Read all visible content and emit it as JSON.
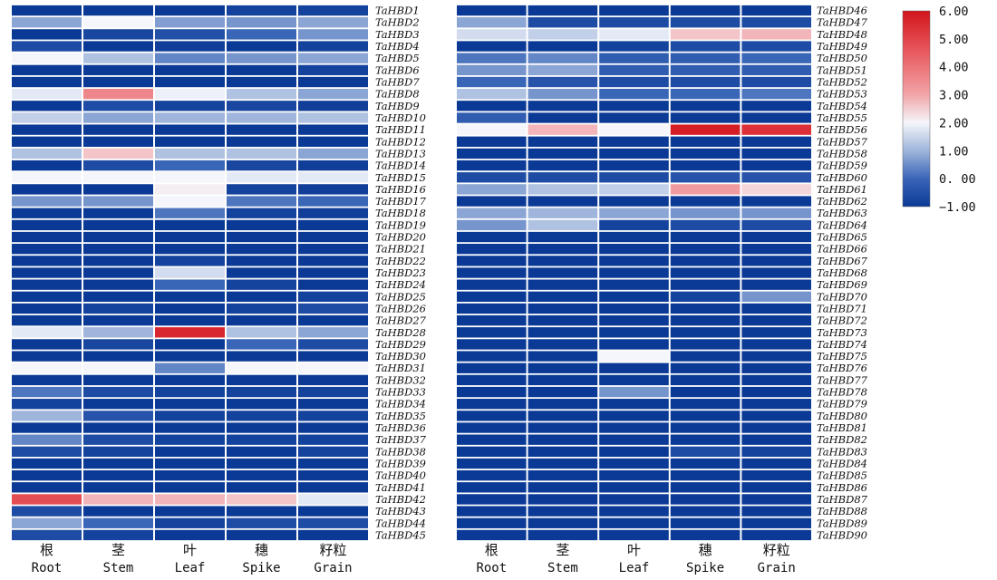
{
  "chart_data": {
    "type": "heatmap",
    "title": "",
    "columns": [
      {
        "cn": "根",
        "en": "Root"
      },
      {
        "cn": "茎",
        "en": "Stem"
      },
      {
        "cn": "叶",
        "en": "Leaf"
      },
      {
        "cn": "穗",
        "en": "Spike"
      },
      {
        "cn": "籽粒",
        "en": "Grain"
      }
    ],
    "panels": [
      {
        "rows": [
          {
            "gene": "TaHBD1",
            "values": [
              -1.0,
              -1.0,
              -1.0,
              -0.8,
              -0.8
            ]
          },
          {
            "gene": "TaHBD2",
            "values": [
              0.8,
              2.0,
              0.7,
              0.6,
              0.8
            ]
          },
          {
            "gene": "TaHBD3",
            "values": [
              -1.0,
              -0.7,
              -0.5,
              0.0,
              0.6
            ]
          },
          {
            "gene": "TaHBD4",
            "values": [
              -0.6,
              -1.0,
              -0.9,
              -1.0,
              -0.8
            ]
          },
          {
            "gene": "TaHBD5",
            "values": [
              2.0,
              1.2,
              0.4,
              0.6,
              0.8
            ]
          },
          {
            "gene": "TaHBD6",
            "values": [
              -1.0,
              -1.0,
              -1.0,
              -1.0,
              -0.8
            ]
          },
          {
            "gene": "TaHBD7",
            "values": [
              -1.0,
              -1.0,
              -1.0,
              -1.0,
              -1.0
            ]
          },
          {
            "gene": "TaHBD8",
            "values": [
              1.8,
              3.6,
              1.9,
              1.2,
              0.8
            ]
          },
          {
            "gene": "TaHBD9",
            "values": [
              -1.0,
              -0.6,
              -0.8,
              -0.7,
              -0.9
            ]
          },
          {
            "gene": "TaHBD10",
            "values": [
              1.4,
              0.8,
              1.0,
              1.0,
              1.2
            ]
          },
          {
            "gene": "TaHBD11",
            "values": [
              -1.0,
              -1.0,
              -1.0,
              -1.0,
              -1.0
            ]
          },
          {
            "gene": "TaHBD12",
            "values": [
              -1.0,
              -1.0,
              -1.0,
              -1.0,
              -1.0
            ]
          },
          {
            "gene": "TaHBD13",
            "values": [
              1.2,
              2.6,
              1.2,
              1.2,
              0.8
            ]
          },
          {
            "gene": "TaHBD14",
            "values": [
              -1.0,
              -0.6,
              0.0,
              -0.7,
              -0.9
            ]
          },
          {
            "gene": "TaHBD15",
            "values": [
              2.0,
              2.0,
              2.0,
              1.8,
              1.8
            ]
          },
          {
            "gene": "TaHBD16",
            "values": [
              -1.0,
              -1.0,
              2.1,
              -0.8,
              -0.9
            ]
          },
          {
            "gene": "TaHBD17",
            "values": [
              0.6,
              0.6,
              2.0,
              0.2,
              0.0
            ]
          },
          {
            "gene": "TaHBD18",
            "values": [
              -1.0,
              -1.0,
              0.2,
              -0.8,
              -0.9
            ]
          },
          {
            "gene": "TaHBD19",
            "values": [
              -1.0,
              -1.0,
              -1.0,
              -1.0,
              -1.0
            ]
          },
          {
            "gene": "TaHBD20",
            "values": [
              -1.0,
              -1.0,
              -1.0,
              -1.0,
              -1.0
            ]
          },
          {
            "gene": "TaHBD21",
            "values": [
              -1.0,
              -1.0,
              -1.0,
              -1.0,
              -1.0
            ]
          },
          {
            "gene": "TaHBD22",
            "values": [
              -1.0,
              -1.0,
              -0.8,
              -1.0,
              -1.0
            ]
          },
          {
            "gene": "TaHBD23",
            "values": [
              -1.0,
              -1.0,
              1.6,
              -1.0,
              -1.0
            ]
          },
          {
            "gene": "TaHBD24",
            "values": [
              -1.0,
              -1.0,
              0.0,
              -0.8,
              -1.0
            ]
          },
          {
            "gene": "TaHBD25",
            "values": [
              -1.0,
              -1.0,
              -1.0,
              -1.0,
              -0.8
            ]
          },
          {
            "gene": "TaHBD26",
            "values": [
              -1.0,
              -0.8,
              -1.0,
              -0.8,
              -0.6
            ]
          },
          {
            "gene": "TaHBD27",
            "values": [
              -1.0,
              -1.0,
              -1.0,
              -1.0,
              -1.0
            ]
          },
          {
            "gene": "TaHBD28",
            "values": [
              1.8,
              1.0,
              5.6,
              1.2,
              0.8
            ]
          },
          {
            "gene": "TaHBD29",
            "values": [
              -1.0,
              -0.7,
              -1.0,
              0.0,
              -0.6
            ]
          },
          {
            "gene": "TaHBD30",
            "values": [
              -1.0,
              -1.0,
              -1.0,
              -1.0,
              -1.0
            ]
          },
          {
            "gene": "TaHBD31",
            "values": [
              2.0,
              2.0,
              0.4,
              2.0,
              2.0
            ]
          },
          {
            "gene": "TaHBD32",
            "values": [
              -1.0,
              -1.0,
              -1.0,
              -1.0,
              -1.0
            ]
          },
          {
            "gene": "TaHBD33",
            "values": [
              0.2,
              -0.6,
              -0.8,
              -0.8,
              -0.8
            ]
          },
          {
            "gene": "TaHBD34",
            "values": [
              -0.8,
              -1.0,
              -1.0,
              -1.0,
              -1.0
            ]
          },
          {
            "gene": "TaHBD35",
            "values": [
              1.0,
              -0.4,
              -0.8,
              -0.8,
              -0.8
            ]
          },
          {
            "gene": "TaHBD36",
            "values": [
              -1.0,
              -1.0,
              -1.0,
              -1.0,
              -1.0
            ]
          },
          {
            "gene": "TaHBD37",
            "values": [
              0.4,
              -0.6,
              -0.8,
              -0.8,
              -0.8
            ]
          },
          {
            "gene": "TaHBD38",
            "values": [
              -0.6,
              -0.8,
              -1.0,
              -1.0,
              -0.8
            ]
          },
          {
            "gene": "TaHBD39",
            "values": [
              -1.0,
              -1.0,
              -1.0,
              -1.0,
              -1.0
            ]
          },
          {
            "gene": "TaHBD40",
            "values": [
              -1.0,
              -1.0,
              -1.0,
              -1.0,
              -1.0
            ]
          },
          {
            "gene": "TaHBD41",
            "values": [
              -1.0,
              -1.0,
              -1.0,
              -1.0,
              -1.0
            ]
          },
          {
            "gene": "TaHBD42",
            "values": [
              4.8,
              2.8,
              2.8,
              2.6,
              1.8
            ]
          },
          {
            "gene": "TaHBD43",
            "values": [
              -0.6,
              -1.0,
              -1.0,
              -1.0,
              -1.0
            ]
          },
          {
            "gene": "TaHBD44",
            "values": [
              0.8,
              0.0,
              -0.8,
              -0.6,
              -0.6
            ]
          },
          {
            "gene": "TaHBD45",
            "values": [
              -0.6,
              -0.8,
              -1.0,
              -1.0,
              -1.0
            ]
          }
        ]
      },
      {
        "rows": [
          {
            "gene": "TaHBD46",
            "values": [
              -1.0,
              -1.0,
              -1.0,
              -1.0,
              -1.0
            ]
          },
          {
            "gene": "TaHBD47",
            "values": [
              0.8,
              -0.6,
              -0.6,
              -0.6,
              -0.6
            ]
          },
          {
            "gene": "TaHBD48",
            "values": [
              1.6,
              1.4,
              1.8,
              2.6,
              2.8
            ]
          },
          {
            "gene": "TaHBD49",
            "values": [
              -1.0,
              -1.0,
              -0.8,
              -0.6,
              -0.6
            ]
          },
          {
            "gene": "TaHBD50",
            "values": [
              0.2,
              0.4,
              -0.2,
              -0.2,
              0.0
            ]
          },
          {
            "gene": "TaHBD51",
            "values": [
              0.6,
              0.8,
              -0.2,
              -0.2,
              -0.2
            ]
          },
          {
            "gene": "TaHBD52",
            "values": [
              0.0,
              -0.4,
              -0.6,
              -0.6,
              -0.6
            ]
          },
          {
            "gene": "TaHBD53",
            "values": [
              1.2,
              0.6,
              0.0,
              0.0,
              0.2
            ]
          },
          {
            "gene": "TaHBD54",
            "values": [
              -1.0,
              -1.0,
              -1.0,
              -1.0,
              -1.0
            ]
          },
          {
            "gene": "TaHBD55",
            "values": [
              -0.2,
              -1.0,
              -1.0,
              -1.0,
              -1.0
            ]
          },
          {
            "gene": "TaHBD56",
            "values": [
              2.0,
              2.8,
              2.0,
              5.8,
              5.4
            ]
          },
          {
            "gene": "TaHBD57",
            "values": [
              -1.0,
              -1.0,
              -1.0,
              -1.0,
              -1.0
            ]
          },
          {
            "gene": "TaHBD58",
            "values": [
              -1.0,
              -1.0,
              -1.0,
              -1.0,
              -1.0
            ]
          },
          {
            "gene": "TaHBD59",
            "values": [
              -1.0,
              -1.0,
              -1.0,
              -1.0,
              -1.0
            ]
          },
          {
            "gene": "TaHBD60",
            "values": [
              -0.6,
              -0.6,
              -0.6,
              -0.4,
              -0.4
            ]
          },
          {
            "gene": "TaHBD61",
            "values": [
              0.8,
              1.2,
              1.4,
              3.2,
              2.4
            ]
          },
          {
            "gene": "TaHBD62",
            "values": [
              -1.0,
              -1.0,
              -1.0,
              -1.0,
              -1.0
            ]
          },
          {
            "gene": "TaHBD63",
            "values": [
              0.8,
              1.0,
              0.8,
              0.6,
              0.6
            ]
          },
          {
            "gene": "TaHBD64",
            "values": [
              0.6,
              1.2,
              -0.8,
              -0.6,
              -0.6
            ]
          },
          {
            "gene": "TaHBD65",
            "values": [
              -1.0,
              -1.0,
              -1.0,
              -1.0,
              -1.0
            ]
          },
          {
            "gene": "TaHBD66",
            "values": [
              -1.0,
              -1.0,
              -1.0,
              -1.0,
              -1.0
            ]
          },
          {
            "gene": "TaHBD67",
            "values": [
              -1.0,
              -1.0,
              -1.0,
              -1.0,
              -1.0
            ]
          },
          {
            "gene": "TaHBD68",
            "values": [
              -1.0,
              -1.0,
              -1.0,
              -1.0,
              -1.0
            ]
          },
          {
            "gene": "TaHBD69",
            "values": [
              -1.0,
              -1.0,
              -1.0,
              -1.0,
              -1.0
            ]
          },
          {
            "gene": "TaHBD70",
            "values": [
              -1.0,
              -1.0,
              -1.0,
              -0.8,
              0.6
            ]
          },
          {
            "gene": "TaHBD71",
            "values": [
              -1.0,
              -1.0,
              -1.0,
              -1.0,
              -1.0
            ]
          },
          {
            "gene": "TaHBD72",
            "values": [
              -1.0,
              -1.0,
              -1.0,
              -1.0,
              -1.0
            ]
          },
          {
            "gene": "TaHBD73",
            "values": [
              -1.0,
              -1.0,
              -1.0,
              -1.0,
              -1.0
            ]
          },
          {
            "gene": "TaHBD74",
            "values": [
              -1.0,
              -1.0,
              -1.0,
              -1.0,
              -1.0
            ]
          },
          {
            "gene": "TaHBD75",
            "values": [
              -1.0,
              -1.0,
              2.0,
              -1.0,
              -1.0
            ]
          },
          {
            "gene": "TaHBD76",
            "values": [
              -1.0,
              -1.0,
              -1.0,
              -1.0,
              -1.0
            ]
          },
          {
            "gene": "TaHBD77",
            "values": [
              -1.0,
              -1.0,
              -1.0,
              -1.0,
              -1.0
            ]
          },
          {
            "gene": "TaHBD78",
            "values": [
              -1.0,
              -1.0,
              0.6,
              -1.0,
              -1.0
            ]
          },
          {
            "gene": "TaHBD79",
            "values": [
              -1.0,
              -1.0,
              -1.0,
              -1.0,
              -1.0
            ]
          },
          {
            "gene": "TaHBD80",
            "values": [
              -1.0,
              -1.0,
              -1.0,
              -1.0,
              -1.0
            ]
          },
          {
            "gene": "TaHBD81",
            "values": [
              -1.0,
              -1.0,
              -1.0,
              -1.0,
              -1.0
            ]
          },
          {
            "gene": "TaHBD82",
            "values": [
              -1.0,
              -1.0,
              -1.0,
              -1.0,
              -1.0
            ]
          },
          {
            "gene": "TaHBD83",
            "values": [
              -1.0,
              -1.0,
              -1.0,
              -0.6,
              -0.8
            ]
          },
          {
            "gene": "TaHBD84",
            "values": [
              -1.0,
              -1.0,
              -1.0,
              -1.0,
              -1.0
            ]
          },
          {
            "gene": "TaHBD85",
            "values": [
              -1.0,
              -1.0,
              -1.0,
              -1.0,
              -1.0
            ]
          },
          {
            "gene": "TaHBD86",
            "values": [
              -1.0,
              -1.0,
              -1.0,
              -1.0,
              -1.0
            ]
          },
          {
            "gene": "TaHBD87",
            "values": [
              -1.0,
              -1.0,
              -1.0,
              -1.0,
              -1.0
            ]
          },
          {
            "gene": "TaHBD88",
            "values": [
              -1.0,
              -1.0,
              -1.0,
              -1.0,
              -1.0
            ]
          },
          {
            "gene": "TaHBD89",
            "values": [
              -1.0,
              -1.0,
              -1.0,
              -1.0,
              -1.0
            ]
          },
          {
            "gene": "TaHBD90",
            "values": [
              -1.0,
              -1.0,
              -1.0,
              -1.0,
              -1.0
            ]
          }
        ]
      }
    ],
    "color_scale": {
      "min": -1.0,
      "max": 6.0,
      "stops": [
        {
          "value": -1.0,
          "color": "#0b3a96"
        },
        {
          "value": 0.0,
          "color": "#3a66b8"
        },
        {
          "value": 1.0,
          "color": "#9fb5db"
        },
        {
          "value": 2.0,
          "color": "#f4f6fb"
        },
        {
          "value": 3.0,
          "color": "#f2a5a8"
        },
        {
          "value": 4.5,
          "color": "#e85b60"
        },
        {
          "value": 6.0,
          "color": "#d2141c"
        }
      ],
      "tick_labels": [
        "6.00",
        "5.00",
        "4.00",
        "3.00",
        "2.00",
        "1.00",
        "0. 00",
        "−1.00"
      ],
      "tick_values": [
        6,
        5,
        4,
        3,
        2,
        1,
        0,
        -1
      ]
    }
  }
}
